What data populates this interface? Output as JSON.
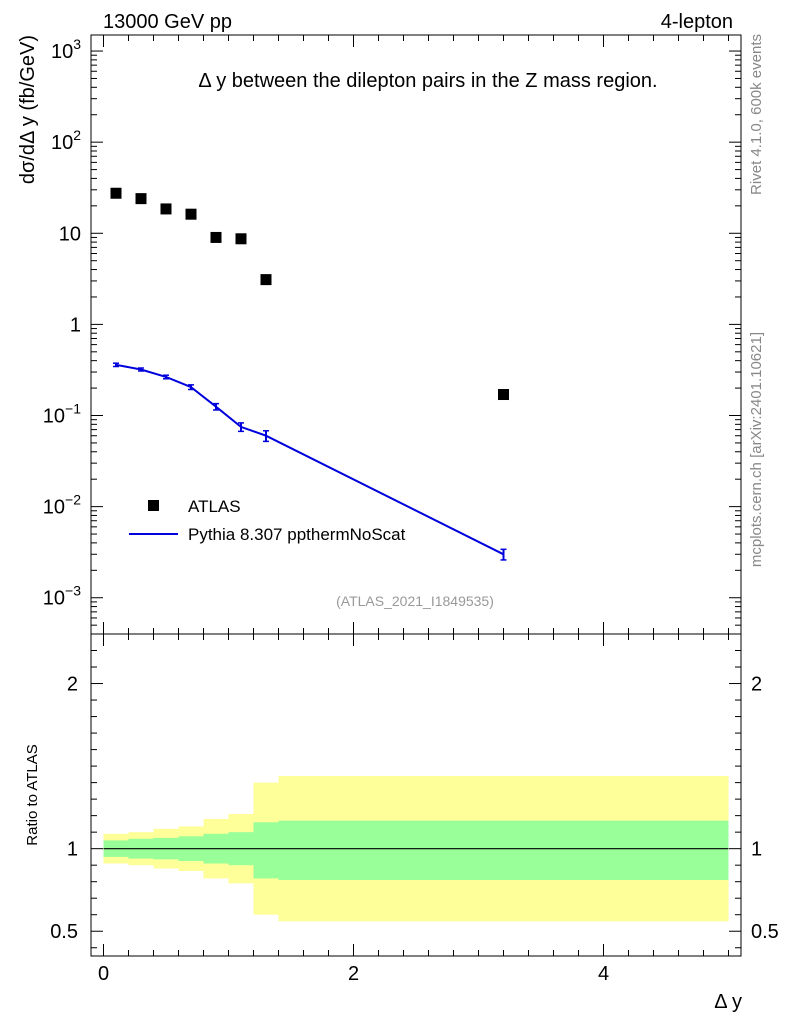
{
  "header": {
    "left_label": "13000 GeV pp",
    "right_label": "4-lepton"
  },
  "side_text": {
    "rivet": "Rivet 4.1.0,  600k events",
    "mcplots": "mcplots.cern.ch [arXiv:2401.10621]"
  },
  "chart_data": [
    {
      "panel": "main",
      "type": "scatter",
      "title": "Δ y between the dilepton pairs in the Z mass region.",
      "xlabel": "Δ y",
      "ylabel": "dσ/dΔ y (fb/GeV)",
      "yscale": "log",
      "xlim": [
        -0.1,
        5.1
      ],
      "ylim": [
        0.0004,
        1500
      ],
      "y_tick_labels": [
        {
          "value": 0.001,
          "base": "10",
          "exp": "−3"
        },
        {
          "value": 0.01,
          "base": "10",
          "exp": "−2"
        },
        {
          "value": 0.1,
          "base": "10",
          "exp": "−1"
        },
        {
          "value": 1,
          "base": "1",
          "exp": ""
        },
        {
          "value": 10,
          "base": "10",
          "exp": ""
        },
        {
          "value": 100,
          "base": "10",
          "exp": "2"
        },
        {
          "value": 1000,
          "base": "10",
          "exp": "3"
        }
      ],
      "legend": [
        "ATLAS",
        "Pythia 8.307 ppthermNoScat"
      ],
      "legend_position": "bottom-left",
      "watermark": "(ATLAS_2021_I1849535)",
      "series": [
        {
          "name": "ATLAS",
          "marker": "square",
          "color": "#000000",
          "x": [
            0.1,
            0.3,
            0.5,
            0.7,
            0.9,
            1.1,
            1.3,
            3.2
          ],
          "y": [
            27.5,
            24.0,
            18.5,
            16.2,
            9.0,
            8.7,
            3.1,
            0.17
          ]
        },
        {
          "name": "Pythia 8.307 ppthermNoScat",
          "marker": "line",
          "color": "#0000dd",
          "x": [
            0.1,
            0.3,
            0.5,
            0.7,
            0.9,
            1.1,
            1.3,
            3.2
          ],
          "y": [
            0.36,
            0.32,
            0.265,
            0.205,
            0.125,
            0.075,
            0.06,
            0.003
          ],
          "err": [
            0.015,
            0.012,
            0.012,
            0.012,
            0.01,
            0.008,
            0.008,
            0.0004
          ]
        }
      ]
    },
    {
      "panel": "ratio",
      "type": "area",
      "ylabel": "Ratio to ATLAS",
      "xlabel": "Δ y",
      "xlim": [
        -0.1,
        5.1
      ],
      "ylim": [
        0.35,
        2.3
      ],
      "x_ticks": [
        0,
        2,
        4
      ],
      "y_ticks": [
        0.5,
        1,
        2
      ],
      "reference": 1,
      "bins": [
        {
          "lo": 0.0,
          "hi": 0.2,
          "green": [
            0.95,
            1.05
          ],
          "yellow": [
            0.91,
            1.09
          ]
        },
        {
          "lo": 0.2,
          "hi": 0.4,
          "green": [
            0.94,
            1.06
          ],
          "yellow": [
            0.9,
            1.1
          ]
        },
        {
          "lo": 0.4,
          "hi": 0.6,
          "green": [
            0.935,
            1.065
          ],
          "yellow": [
            0.88,
            1.12
          ]
        },
        {
          "lo": 0.6,
          "hi": 0.8,
          "green": [
            0.925,
            1.075
          ],
          "yellow": [
            0.865,
            1.135
          ]
        },
        {
          "lo": 0.8,
          "hi": 1.0,
          "green": [
            0.91,
            1.09
          ],
          "yellow": [
            0.82,
            1.18
          ]
        },
        {
          "lo": 1.0,
          "hi": 1.2,
          "green": [
            0.9,
            1.1
          ],
          "yellow": [
            0.79,
            1.21
          ]
        },
        {
          "lo": 1.2,
          "hi": 1.4,
          "green": [
            0.82,
            1.16
          ],
          "yellow": [
            0.6,
            1.4
          ]
        },
        {
          "lo": 1.4,
          "hi": 5.0,
          "green": [
            0.81,
            1.17
          ],
          "yellow": [
            0.56,
            1.44
          ]
        }
      ]
    }
  ]
}
